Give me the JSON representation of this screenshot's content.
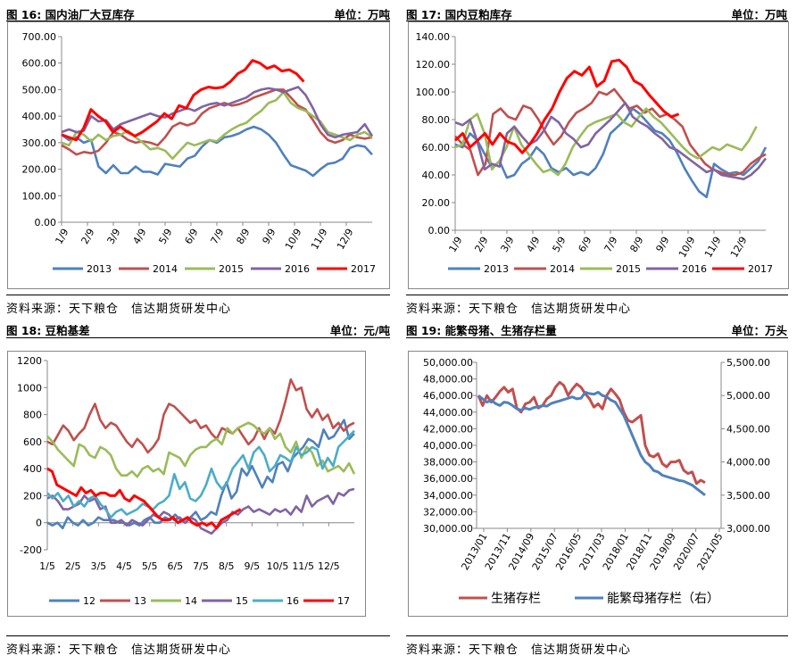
{
  "source_text": "资料来源：天下粮仓　信达期货研发中心",
  "charts": [
    {
      "title": "图 16: 国内油厂大豆库存",
      "unit": "单位：万吨"
    },
    {
      "title": "图 17: 国内豆粕库存",
      "unit": "单位：万吨"
    },
    {
      "title": "图 18: 豆粕基差",
      "unit": "单位：元/吨"
    },
    {
      "title": "图 19: 能繁母猪、生猪存栏量",
      "unit": "单位：万头"
    }
  ],
  "colors": {
    "2013": "#4F81BD",
    "2014": "#C0504D",
    "2015": "#9BBB59",
    "2016": "#8064A2",
    "2017": "#FF0000",
    "12": "#4F81BD",
    "13": "#C0504D",
    "14": "#9BBB59",
    "15": "#8064A2",
    "16": "#4BACC6",
    "17": "#FF0000",
    "hog": "#C0504D",
    "sow": "#4F81BD"
  },
  "chart_data": [
    {
      "type": "line",
      "x_ticks": [
        "1/9",
        "2/9",
        "3/9",
        "4/9",
        "5/9",
        "6/9",
        "7/9",
        "8/9",
        "9/9",
        "10/9",
        "11/9",
        "12/9"
      ],
      "ylim": [
        0,
        700
      ],
      "y_ticks": [
        "0.00",
        "100.00",
        "200.00",
        "300.00",
        "400.00",
        "500.00",
        "600.00",
        "700.00"
      ],
      "series": [
        {
          "name": "2013",
          "values": [
            330,
            310,
            320,
            300,
            310,
            210,
            185,
            215,
            185,
            185,
            210,
            190,
            190,
            180,
            220,
            215,
            210,
            240,
            250,
            285,
            310,
            300,
            320,
            325,
            335,
            350,
            360,
            350,
            330,
            300,
            255,
            215,
            205,
            195,
            175,
            200,
            220,
            225,
            240,
            280,
            290,
            285,
            255
          ]
        },
        {
          "name": "2014",
          "values": [
            290,
            275,
            255,
            265,
            260,
            270,
            300,
            340,
            330,
            310,
            300,
            305,
            300,
            290,
            320,
            360,
            375,
            365,
            375,
            410,
            430,
            440,
            450,
            440,
            445,
            455,
            470,
            480,
            490,
            500,
            500,
            470,
            440,
            425,
            385,
            340,
            310,
            300,
            310,
            330,
            320,
            315,
            320
          ]
        },
        {
          "name": "2015",
          "values": [
            300,
            290,
            340,
            330,
            305,
            330,
            310,
            325,
            330,
            345,
            320,
            300,
            275,
            280,
            270,
            240,
            270,
            300,
            290,
            300,
            310,
            305,
            330,
            350,
            365,
            375,
            400,
            420,
            450,
            460,
            490,
            450,
            430,
            420,
            400,
            380,
            340,
            330,
            320,
            310,
            330,
            340,
            320
          ]
        },
        {
          "name": "2016",
          "values": [
            340,
            350,
            340,
            345,
            400,
            380,
            385,
            350,
            370,
            380,
            390,
            400,
            410,
            400,
            395,
            410,
            420,
            430,
            420,
            435,
            445,
            450,
            440,
            450,
            460,
            470,
            490,
            500,
            505,
            500,
            490,
            500,
            510,
            480,
            430,
            370,
            330,
            320,
            330,
            335,
            340,
            370,
            325
          ]
        },
        {
          "name": "2017",
          "values": [
            330,
            320,
            310,
            355,
            425,
            400,
            380,
            340,
            360,
            340,
            325,
            340,
            360,
            380,
            410,
            390,
            440,
            430,
            480,
            500,
            510,
            505,
            510,
            530,
            560,
            575,
            610,
            600,
            580,
            590,
            570,
            575,
            560,
            530
          ]
        }
      ]
    },
    {
      "type": "line",
      "x_ticks": [
        "1/9",
        "2/9",
        "3/9",
        "4/9",
        "5/9",
        "6/9",
        "7/9",
        "8/9",
        "9/9",
        "10/9",
        "11/9",
        "12/9"
      ],
      "ylim": [
        0,
        140
      ],
      "y_ticks": [
        "0.00",
        "20.00",
        "40.00",
        "60.00",
        "80.00",
        "100.00",
        "120.00",
        "140.00"
      ],
      "series": [
        {
          "name": "2013",
          "values": [
            62,
            60,
            70,
            65,
            55,
            45,
            50,
            38,
            40,
            48,
            52,
            60,
            55,
            45,
            42,
            45,
            40,
            42,
            40,
            45,
            55,
            70,
            75,
            80,
            88,
            84,
            78,
            72,
            70,
            65,
            56,
            45,
            36,
            28,
            24,
            48,
            44,
            41,
            42,
            40,
            45,
            50,
            60
          ]
        },
        {
          "name": "2014",
          "values": [
            68,
            62,
            58,
            40,
            48,
            84,
            88,
            82,
            80,
            90,
            88,
            80,
            70,
            62,
            68,
            78,
            85,
            88,
            92,
            100,
            98,
            102,
            95,
            88,
            90,
            85,
            88,
            82,
            84,
            80,
            75,
            62,
            55,
            48,
            44,
            42,
            40,
            40,
            42,
            48,
            52,
            55
          ]
        },
        {
          "name": "2015",
          "values": [
            60,
            62,
            80,
            84,
            70,
            44,
            50,
            60,
            75,
            62,
            55,
            48,
            42,
            44,
            40,
            48,
            60,
            68,
            75,
            78,
            80,
            82,
            84,
            78,
            75,
            82,
            88,
            82,
            78,
            72,
            66,
            60,
            55,
            52,
            56,
            60,
            58,
            62,
            60,
            58,
            65,
            75
          ]
        },
        {
          "name": "2016",
          "values": [
            78,
            76,
            80,
            64,
            44,
            48,
            46,
            70,
            75,
            68,
            62,
            65,
            72,
            82,
            78,
            70,
            66,
            60,
            62,
            70,
            75,
            80,
            86,
            92,
            82,
            78,
            75,
            70,
            66,
            60,
            58,
            54,
            50,
            46,
            42,
            44,
            40,
            39,
            38,
            37,
            40,
            45,
            52
          ]
        },
        {
          "name": "2017",
          "values": [
            65,
            70,
            60,
            65,
            70,
            62,
            70,
            64,
            62,
            56,
            62,
            70,
            80,
            88,
            100,
            110,
            115,
            112,
            118,
            104,
            108,
            122,
            123,
            118,
            108,
            105,
            98,
            92,
            86,
            82,
            84
          ]
        }
      ]
    },
    {
      "type": "line",
      "x_ticks": [
        "1/5",
        "2/5",
        "3/5",
        "4/5",
        "5/5",
        "6/5",
        "7/5",
        "8/5",
        "9/5",
        "10/5",
        "11/5",
        "12/5"
      ],
      "ylim": [
        -200,
        1200
      ],
      "y_ticks": [
        "-200",
        "0",
        "200",
        "400",
        "600",
        "800",
        "1000",
        "1200"
      ],
      "series": [
        {
          "name": "12",
          "values": [
            0,
            -20,
            0,
            -40,
            40,
            0,
            -20,
            20,
            -20,
            0,
            40,
            20,
            20,
            20,
            0,
            0,
            -20,
            0,
            -20,
            20,
            40,
            0,
            0,
            40,
            20,
            60,
            20,
            0,
            40,
            80,
            20,
            40,
            80,
            60,
            200,
            300,
            180,
            230,
            400,
            350,
            420,
            340,
            260,
            340,
            300,
            430,
            450,
            380,
            480,
            520,
            560,
            620,
            600,
            560,
            690,
            620,
            640,
            700,
            760,
            620,
            660
          ]
        },
        {
          "name": "13",
          "values": [
            600,
            580,
            650,
            720,
            680,
            610,
            660,
            700,
            800,
            880,
            760,
            700,
            740,
            720,
            660,
            600,
            560,
            620,
            580,
            520,
            560,
            620,
            800,
            880,
            860,
            820,
            780,
            740,
            760,
            700,
            720,
            660,
            620,
            700,
            680,
            660,
            700,
            640,
            580,
            620,
            700,
            620,
            700,
            660,
            760,
            900,
            1060,
            980,
            1000,
            840,
            780,
            840,
            760,
            800,
            700,
            740,
            680,
            720,
            740
          ]
        },
        {
          "name": "14",
          "values": [
            640,
            600,
            540,
            500,
            460,
            420,
            580,
            560,
            500,
            480,
            560,
            540,
            500,
            400,
            350,
            350,
            380,
            340,
            400,
            420,
            380,
            400,
            360,
            520,
            500,
            480,
            420,
            500,
            540,
            560,
            560,
            600,
            620,
            580,
            700,
            660,
            700,
            720,
            740,
            720,
            680,
            660,
            700,
            620,
            660,
            560,
            520,
            600,
            480,
            560,
            520,
            420,
            460,
            380,
            400,
            420,
            380,
            440,
            360
          ]
        },
        {
          "name": "15",
          "values": [
            180,
            200,
            160,
            100,
            100,
            120,
            140,
            200,
            160,
            180,
            100,
            120,
            0,
            0,
            20,
            -20,
            20,
            0,
            -20,
            20,
            60,
            40,
            80,
            60,
            20,
            40,
            0,
            40,
            20,
            -40,
            -60,
            -80,
            -40,
            0,
            20,
            80,
            60,
            100,
            120,
            80,
            100,
            80,
            60,
            100,
            80,
            100,
            60,
            120,
            80,
            200,
            120,
            160,
            180,
            200,
            140,
            220,
            200,
            240,
            250
          ]
        },
        {
          "name": "16",
          "values": [
            220,
            180,
            220,
            160,
            200,
            120,
            160,
            120,
            180,
            200,
            140,
            100,
            40,
            80,
            100,
            60,
            80,
            100,
            140,
            120,
            100,
            140,
            160,
            200,
            360,
            250,
            300,
            180,
            160,
            200,
            280,
            400,
            300,
            250,
            300,
            400,
            450,
            500,
            400,
            520,
            560,
            500,
            380,
            420,
            500,
            480,
            450,
            560,
            500,
            520,
            560,
            540,
            400,
            480,
            420,
            560,
            600,
            640,
            680
          ]
        },
        {
          "name": "17",
          "values": [
            400,
            380,
            280,
            260,
            240,
            220,
            200,
            260,
            220,
            240,
            200,
            220,
            220,
            200,
            200,
            240,
            180,
            160,
            200,
            180,
            160,
            120,
            80,
            40,
            20,
            20,
            40,
            0,
            20,
            40,
            0,
            -20,
            0,
            -20,
            0,
            -40,
            20,
            40,
            60,
            80,
            100
          ]
        }
      ]
    },
    {
      "type": "line",
      "x_ticks": [
        "2013/01",
        "2013/11",
        "2014/09",
        "2015/07",
        "2016/05",
        "2017/03",
        "2018/01",
        "2018/11",
        "2019/09",
        "2020/07",
        "2021/05"
      ],
      "ylim_left": [
        30000,
        50000
      ],
      "ylim_right": [
        3000,
        5500
      ],
      "y_ticks_left": [
        "30,000.00",
        "32,000.00",
        "34,000.00",
        "36,000.00",
        "38,000.00",
        "40,000.00",
        "42,000.00",
        "44,000.00",
        "46,000.00",
        "48,000.00",
        "50,000.00"
      ],
      "y_ticks_right": [
        "3,000.00",
        "3,500.00",
        "4,000.00",
        "4,500.00",
        "5,000.00",
        "5,500.00"
      ],
      "legend": [
        "生猪存栏",
        "能繁母猪存栏（右）"
      ],
      "series": [
        {
          "name": "生猪存栏",
          "axis": "left",
          "values": [
            46000,
            44800,
            46000,
            45200,
            45800,
            46500,
            47000,
            46400,
            46800,
            44500,
            44000,
            45000,
            45200,
            45800,
            44500,
            44800,
            45600,
            46000,
            47000,
            47600,
            47200,
            46000,
            46800,
            47400,
            47000,
            46200,
            45600,
            44600,
            45000,
            44400,
            46000,
            46800,
            46200,
            45500,
            44000,
            43000,
            42800,
            43200,
            43600,
            40000,
            38800,
            38600,
            39000,
            37800,
            37400,
            38000,
            38000,
            38200,
            37000,
            36600,
            36800,
            35400,
            35800,
            35500
          ]
        },
        {
          "name": "能繁母猪存栏（右）",
          "axis": "right",
          "values": [
            5000,
            4950,
            4900,
            4930,
            4880,
            4850,
            4900,
            4890,
            4850,
            4800,
            4780,
            4810,
            4790,
            4820,
            4830,
            4850,
            4840,
            4880,
            4900,
            4920,
            4940,
            4960,
            4980,
            4950,
            4960,
            5050,
            5030,
            5020,
            5050,
            5000,
            4980,
            4930,
            4900,
            4800,
            4700,
            4550,
            4400,
            4250,
            4100,
            4000,
            3950,
            3870,
            3850,
            3800,
            3780,
            3760,
            3740,
            3720,
            3710,
            3680,
            3650,
            3600,
            3550,
            3500
          ]
        }
      ]
    }
  ]
}
